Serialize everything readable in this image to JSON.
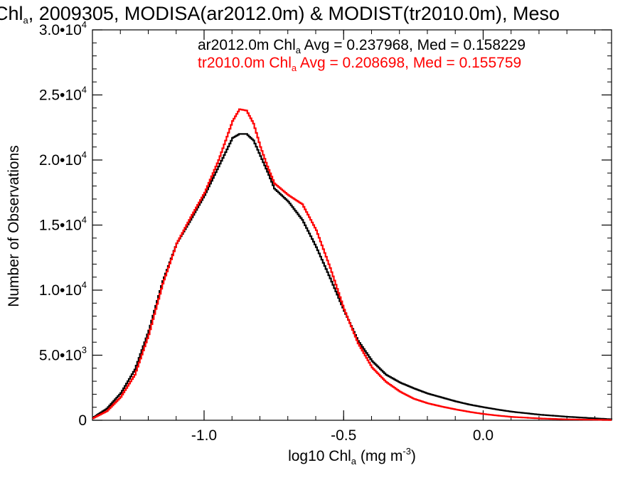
{
  "chart_data": {
    "type": "line",
    "title_parts": {
      "pre": "Chl",
      "sub": "a",
      "post": ", 2009305, MODISA(ar2012.0m) & MODIST(tr2010.0m), Meso"
    },
    "xlabel_parts": {
      "pre": "log10 Chl",
      "sub": "a",
      "mid": " (mg m",
      "sup": "-3",
      "post": ")"
    },
    "ylabel": "Number of Observations",
    "xlim": [
      -1.4,
      0.46
    ],
    "ylim": [
      0,
      30000
    ],
    "x_ticks": [
      {
        "value": -1.0,
        "label": "-1.0"
      },
      {
        "value": -0.5,
        "label": "-0.5"
      },
      {
        "value": 0.0,
        "label": "0.0"
      }
    ],
    "y_ticks": [
      {
        "value": 0,
        "mant": "0",
        "exp": ""
      },
      {
        "value": 5000,
        "mant": "5.0•10",
        "exp": "3"
      },
      {
        "value": 10000,
        "mant": "1.0•10",
        "exp": "4"
      },
      {
        "value": 15000,
        "mant": "1.5•10",
        "exp": "4"
      },
      {
        "value": 20000,
        "mant": "2.0•10",
        "exp": "4"
      },
      {
        "value": 25000,
        "mant": "2.5•10",
        "exp": "4"
      },
      {
        "value": 30000,
        "mant": "3.0•10",
        "exp": "4"
      }
    ],
    "grid": false,
    "legend_position": "top-right",
    "series": [
      {
        "name": "ar2012.0m",
        "stats": {
          "pre": "ar2012.0m Chl",
          "sub": "a",
          "post": " Avg = 0.237968, Med = 0.158229"
        },
        "color": "#000000",
        "x": [
          -1.4,
          -1.35,
          -1.3,
          -1.25,
          -1.2,
          -1.15,
          -1.1,
          -1.05,
          -1.0,
          -0.95,
          -0.9,
          -0.875,
          -0.85,
          -0.825,
          -0.8,
          -0.775,
          -0.75,
          -0.7,
          -0.65,
          -0.6,
          -0.55,
          -0.5,
          -0.45,
          -0.4,
          -0.35,
          -0.3,
          -0.25,
          -0.2,
          -0.15,
          -0.1,
          -0.05,
          0.0,
          0.05,
          0.1,
          0.2,
          0.3,
          0.46
        ],
        "y": [
          200,
          900,
          2100,
          3900,
          6900,
          10700,
          13600,
          15400,
          17300,
          19500,
          21700,
          22000,
          22000,
          21500,
          20300,
          19100,
          17800,
          16800,
          15400,
          13300,
          10900,
          8400,
          6100,
          4550,
          3500,
          2900,
          2450,
          2050,
          1750,
          1450,
          1200,
          1000,
          820,
          660,
          430,
          270,
          70
        ]
      },
      {
        "name": "tr2010.0m",
        "stats": {
          "pre": "tr2010.0m Chl",
          "sub": "a",
          "post": " Avg = 0.208698, Med = 0.155759"
        },
        "color": "#ff0000",
        "x": [
          -1.4,
          -1.35,
          -1.3,
          -1.25,
          -1.2,
          -1.15,
          -1.1,
          -1.05,
          -1.0,
          -0.95,
          -0.9,
          -0.875,
          -0.85,
          -0.825,
          -0.8,
          -0.775,
          -0.75,
          -0.7,
          -0.65,
          -0.6,
          -0.55,
          -0.5,
          -0.45,
          -0.4,
          -0.35,
          -0.3,
          -0.25,
          -0.2,
          -0.15,
          -0.1,
          -0.05,
          0.0,
          0.05,
          0.1,
          0.2,
          0.3,
          0.46
        ],
        "y": [
          150,
          700,
          1800,
          3500,
          6600,
          10500,
          13600,
          15600,
          17500,
          20000,
          23000,
          23900,
          23800,
          22800,
          21000,
          19500,
          18200,
          17300,
          16600,
          14600,
          11700,
          8500,
          5900,
          4050,
          2950,
          2200,
          1650,
          1300,
          1050,
          830,
          640,
          480,
          360,
          260,
          140,
          70,
          20
        ]
      }
    ]
  }
}
